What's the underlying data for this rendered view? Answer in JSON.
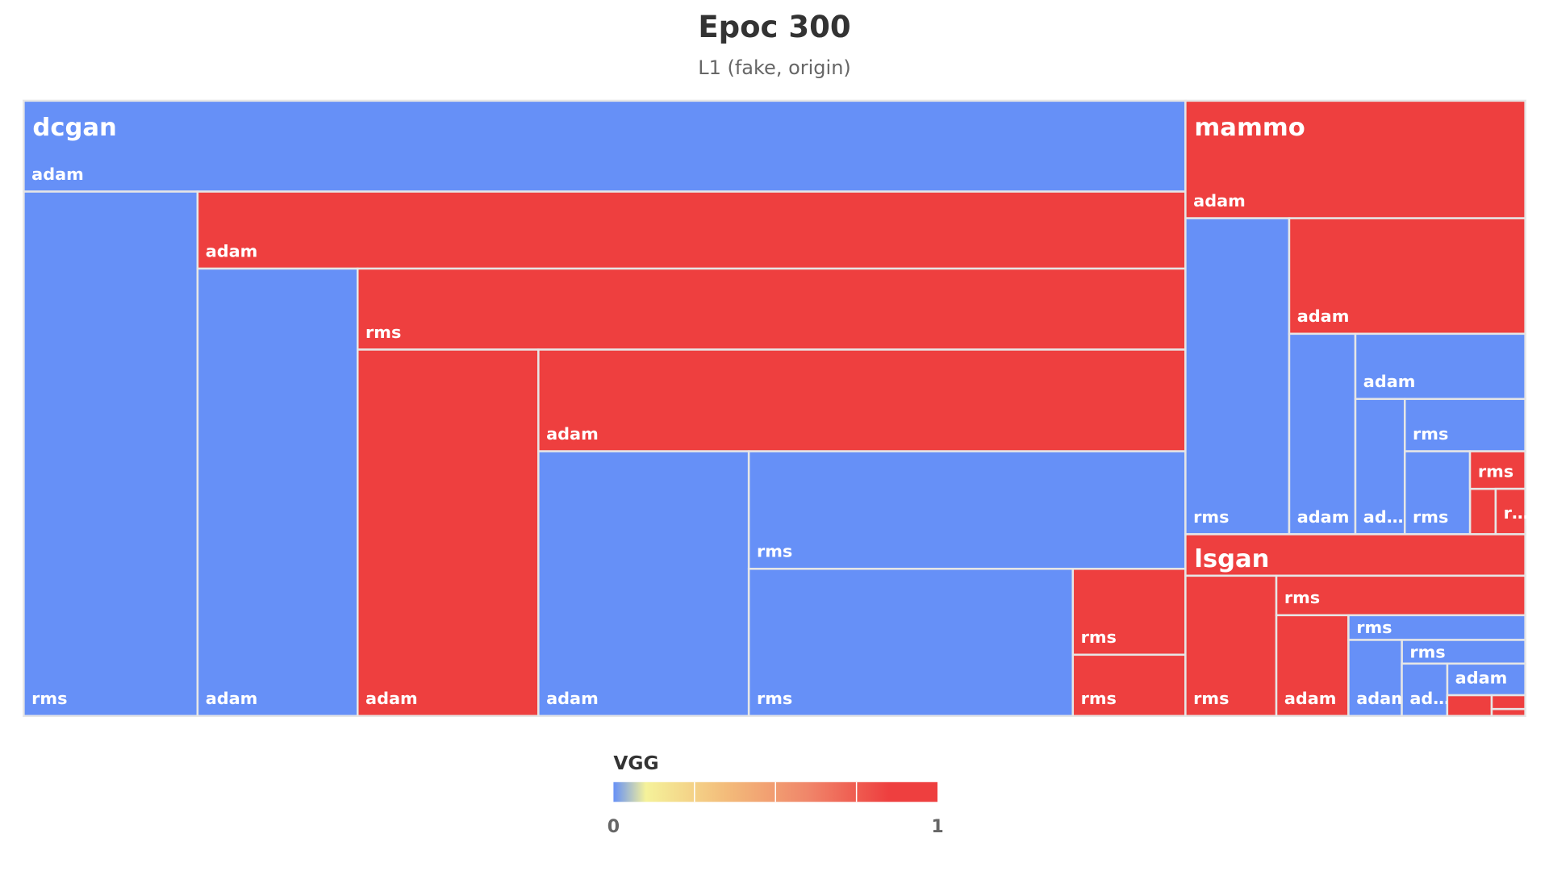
{
  "chart_data": {
    "type": "treemap",
    "title": "Epoc 300",
    "subtitle": "L1 (fake, origin)",
    "color_axis": {
      "title": "VGG",
      "min": 0,
      "max": 1,
      "min_label": "0",
      "max_label": "1",
      "stops": [
        "#6690f7",
        "#f5f29a",
        "#f3bb7a",
        "#f0866a",
        "#ee3f3f"
      ]
    },
    "colors": {
      "low": "#6690f7",
      "high": "#ee3f3f"
    },
    "groups": [
      {
        "name": "dcgan",
        "value_level": 0,
        "children": [
          {
            "label": "adam",
            "value": 0
          },
          {
            "label": "rms",
            "value": 0
          },
          {
            "label": "adam",
            "value": 1
          },
          {
            "label": "adam",
            "value": 0
          },
          {
            "label": "rms",
            "value": 1
          },
          {
            "label": "adam",
            "value": 1
          },
          {
            "label": "adam",
            "value": 1
          },
          {
            "label": "adam",
            "value": 0
          },
          {
            "label": "rms",
            "value": 0
          },
          {
            "label": "rms",
            "value": 0
          },
          {
            "label": "rms",
            "value": 1
          },
          {
            "label": "rms",
            "value": 1
          }
        ]
      },
      {
        "name": "mammo",
        "value_level": 1,
        "children": [
          {
            "label": "adam",
            "value": 1
          },
          {
            "label": "rms",
            "value": 0
          },
          {
            "label": "adam",
            "value": 1
          },
          {
            "label": "adam",
            "value": 0
          },
          {
            "label": "adam",
            "value": 0
          },
          {
            "label": "rms",
            "value": 0
          },
          {
            "label": "ad…",
            "value": 0
          },
          {
            "label": "rms",
            "value": 0
          },
          {
            "label": "rms",
            "value": 1
          },
          {
            "label": "r…",
            "value": 1
          }
        ]
      },
      {
        "name": "lsgan",
        "value_level": 0,
        "children": [
          {
            "label": "rms",
            "value": 1
          },
          {
            "label": "rms",
            "value": 1
          },
          {
            "label": "adam",
            "value": 1
          },
          {
            "label": "rms",
            "value": 0
          },
          {
            "label": "rms",
            "value": 0
          },
          {
            "label": "adam",
            "value": 0
          },
          {
            "label": "adam",
            "value": 0
          },
          {
            "label": "ad…",
            "value": 0
          }
        ]
      }
    ]
  }
}
